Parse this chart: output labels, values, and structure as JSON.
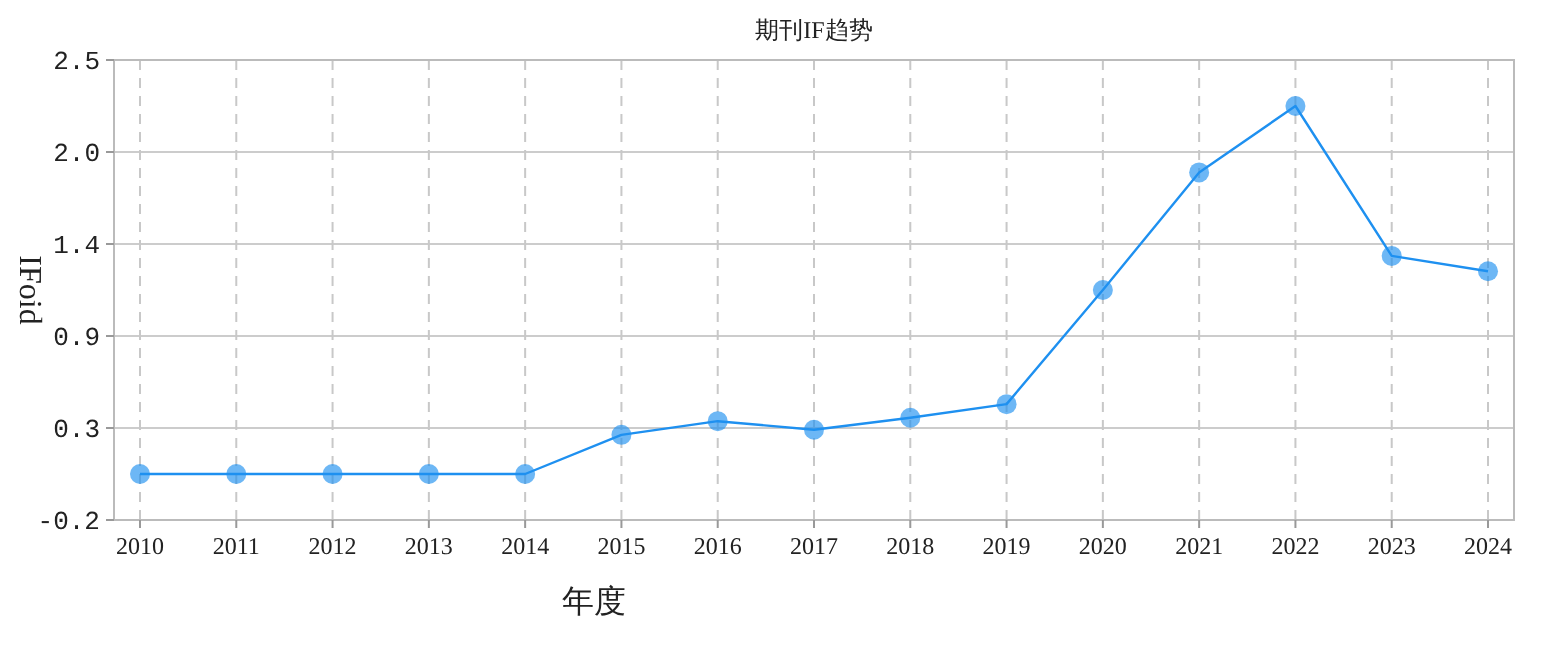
{
  "chart_data": {
    "type": "line",
    "title": "期刊IF趋势",
    "xlabel": "年度",
    "ylabel": "IFoid",
    "categories": [
      "2010",
      "2011",
      "2012",
      "2013",
      "2014",
      "2015",
      "2016",
      "2017",
      "2018",
      "2019",
      "2020",
      "2021",
      "2022",
      "2023",
      "2024"
    ],
    "series": [
      {
        "color": "#1e90f0",
        "values": [
          0.07,
          0.07,
          0.07,
          0.07,
          0.07,
          0.3,
          0.38,
          0.33,
          0.4,
          0.48,
          1.15,
          1.84,
          2.23,
          1.35,
          1.26
        ]
      }
    ],
    "ylim": [
      -0.2,
      2.5
    ],
    "yticks": [
      -0.2,
      {
        "value": 0.34,
        "label": "0.3"
      },
      {
        "value": 0.88,
        "label": "0.9"
      },
      {
        "value": 1.42,
        "label": "1.4"
      },
      {
        "value": 1.96,
        "label": "2.0"
      },
      2.5
    ],
    "grid": true,
    "marker": "circle",
    "line_style": "solid"
  }
}
